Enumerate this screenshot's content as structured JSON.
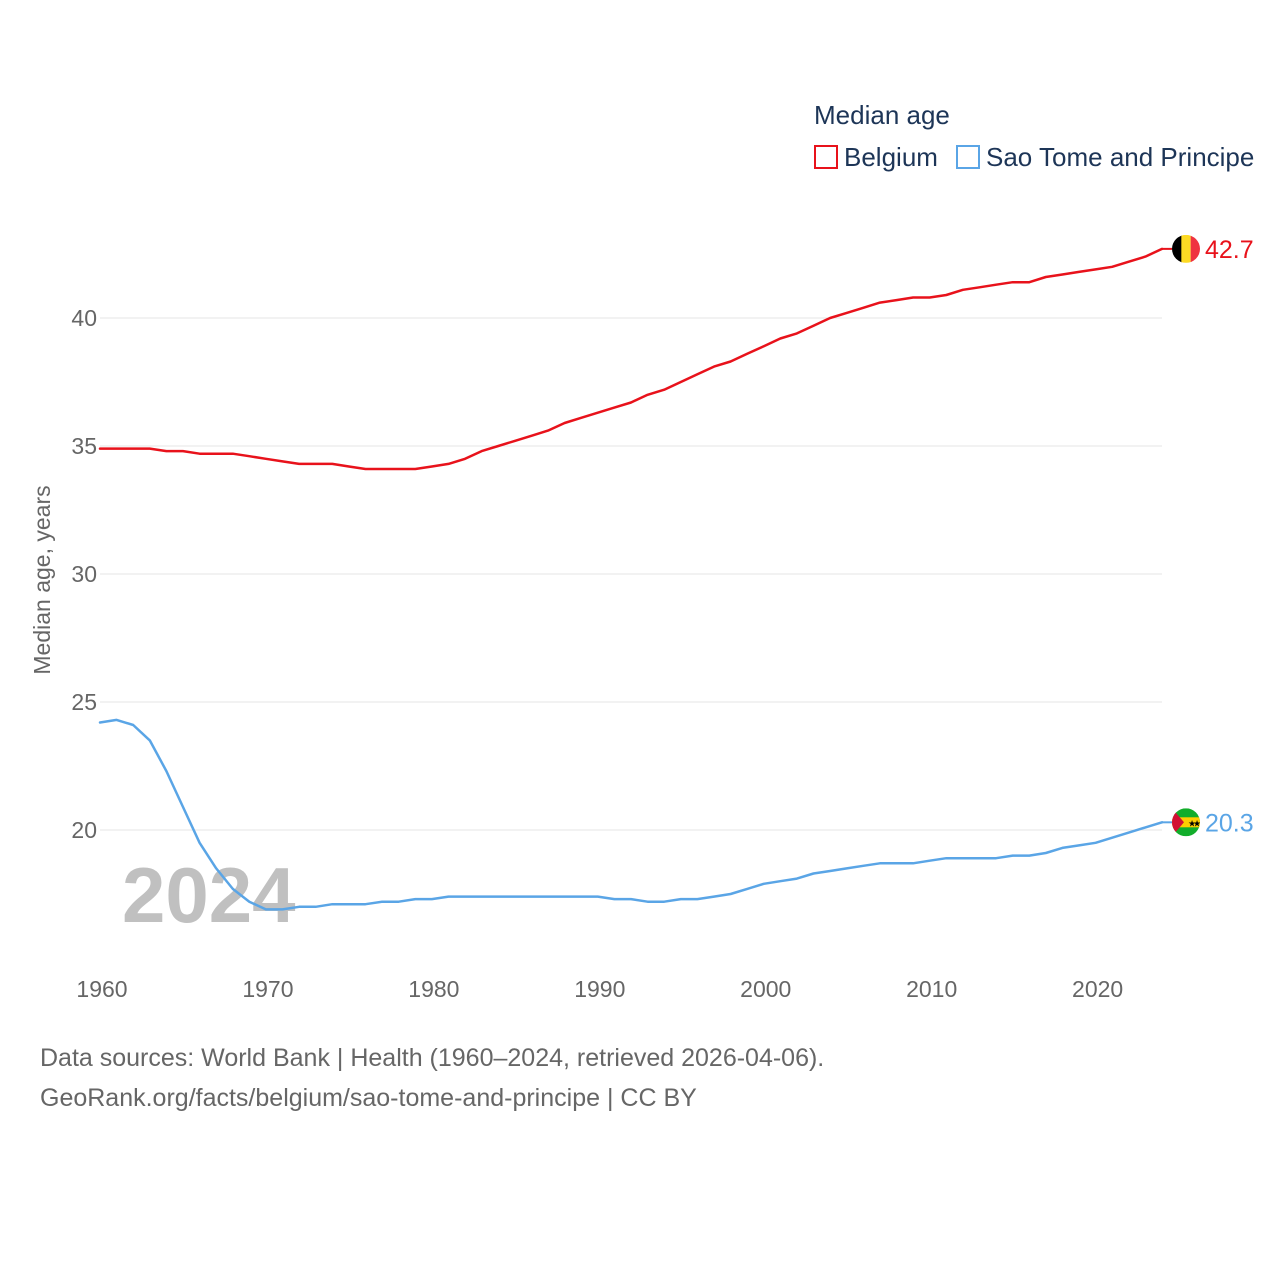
{
  "chart_data": {
    "type": "line",
    "legend_title": "Median age",
    "ylabel": "Median age, years",
    "xlabel": "",
    "xlim": [
      1960,
      2024
    ],
    "ylim": [
      15,
      45
    ],
    "yticks": [
      20,
      25,
      30,
      35,
      40
    ],
    "xticks": [
      1960,
      1970,
      1980,
      1990,
      2000,
      2010,
      2020
    ],
    "grid": true,
    "legend_position": "top-right",
    "watermark_year": "2024",
    "x": [
      1960,
      1961,
      1962,
      1963,
      1964,
      1965,
      1966,
      1967,
      1968,
      1969,
      1970,
      1971,
      1972,
      1973,
      1974,
      1975,
      1976,
      1977,
      1978,
      1979,
      1980,
      1981,
      1982,
      1983,
      1984,
      1985,
      1986,
      1987,
      1988,
      1989,
      1990,
      1991,
      1992,
      1993,
      1994,
      1995,
      1996,
      1997,
      1998,
      1999,
      2000,
      2001,
      2002,
      2003,
      2004,
      2005,
      2006,
      2007,
      2008,
      2009,
      2010,
      2011,
      2012,
      2013,
      2014,
      2015,
      2016,
      2017,
      2018,
      2019,
      2020,
      2021,
      2022,
      2023,
      2024
    ],
    "series": [
      {
        "name": "Belgium",
        "color": "#e8121b",
        "end_label": "42.7",
        "values": [
          34.9,
          34.9,
          34.9,
          34.9,
          34.8,
          34.8,
          34.7,
          34.7,
          34.7,
          34.6,
          34.5,
          34.4,
          34.3,
          34.3,
          34.3,
          34.2,
          34.1,
          34.1,
          34.1,
          34.1,
          34.2,
          34.3,
          34.5,
          34.8,
          35.0,
          35.2,
          35.4,
          35.6,
          35.9,
          36.1,
          36.3,
          36.5,
          36.7,
          37.0,
          37.2,
          37.5,
          37.8,
          38.1,
          38.3,
          38.6,
          38.9,
          39.2,
          39.4,
          39.7,
          40.0,
          40.2,
          40.4,
          40.6,
          40.7,
          40.8,
          40.8,
          40.9,
          41.1,
          41.2,
          41.3,
          41.4,
          41.4,
          41.6,
          41.7,
          41.8,
          41.9,
          42.0,
          42.2,
          42.4,
          42.7
        ]
      },
      {
        "name": "Sao Tome and Principe",
        "color": "#5aa5e6",
        "end_label": "20.3",
        "values": [
          24.2,
          24.3,
          24.1,
          23.5,
          22.3,
          20.9,
          19.5,
          18.5,
          17.7,
          17.2,
          16.9,
          16.9,
          17.0,
          17.0,
          17.1,
          17.1,
          17.1,
          17.2,
          17.2,
          17.3,
          17.3,
          17.4,
          17.4,
          17.4,
          17.4,
          17.4,
          17.4,
          17.4,
          17.4,
          17.4,
          17.4,
          17.3,
          17.3,
          17.2,
          17.2,
          17.3,
          17.3,
          17.4,
          17.5,
          17.7,
          17.9,
          18.0,
          18.1,
          18.3,
          18.4,
          18.5,
          18.6,
          18.7,
          18.7,
          18.7,
          18.8,
          18.9,
          18.9,
          18.9,
          18.9,
          19.0,
          19.0,
          19.1,
          19.3,
          19.4,
          19.5,
          19.7,
          19.9,
          20.1,
          20.3
        ]
      }
    ]
  },
  "footer": {
    "line1": "Data sources: World Bank | Health (1960–2024, retrieved 2026-04-06).",
    "line2": "GeoRank.org/facts/belgium/sao-tome-and-principe | CC BY"
  }
}
